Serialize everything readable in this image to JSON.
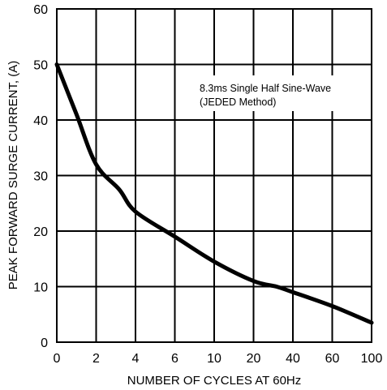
{
  "chart_data": {
    "type": "line",
    "title": "",
    "xlabel": "NUMBER OF CYCLES AT 60Hz",
    "ylabel": "PEAK FORWARD SURGE CURRENT, (A)",
    "x_ticks": [
      "0",
      "2",
      "4",
      "6",
      "10",
      "20",
      "40",
      "60",
      "100"
    ],
    "y_ticks": [
      "0",
      "10",
      "20",
      "30",
      "40",
      "50",
      "60"
    ],
    "ylim": [
      0,
      60
    ],
    "grid": true,
    "annotation": [
      "8.3ms Single Half Sine-Wave",
      "(JEDED Method)"
    ],
    "series": [
      {
        "x": [
          "0",
          "1",
          "2",
          "3",
          "4",
          "6",
          "10",
          "20",
          "30",
          "40",
          "60",
          "100"
        ],
        "values": [
          50,
          41,
          32,
          27.5,
          23.5,
          19,
          14.5,
          11,
          10,
          9,
          6.5,
          3.5
        ]
      }
    ]
  }
}
